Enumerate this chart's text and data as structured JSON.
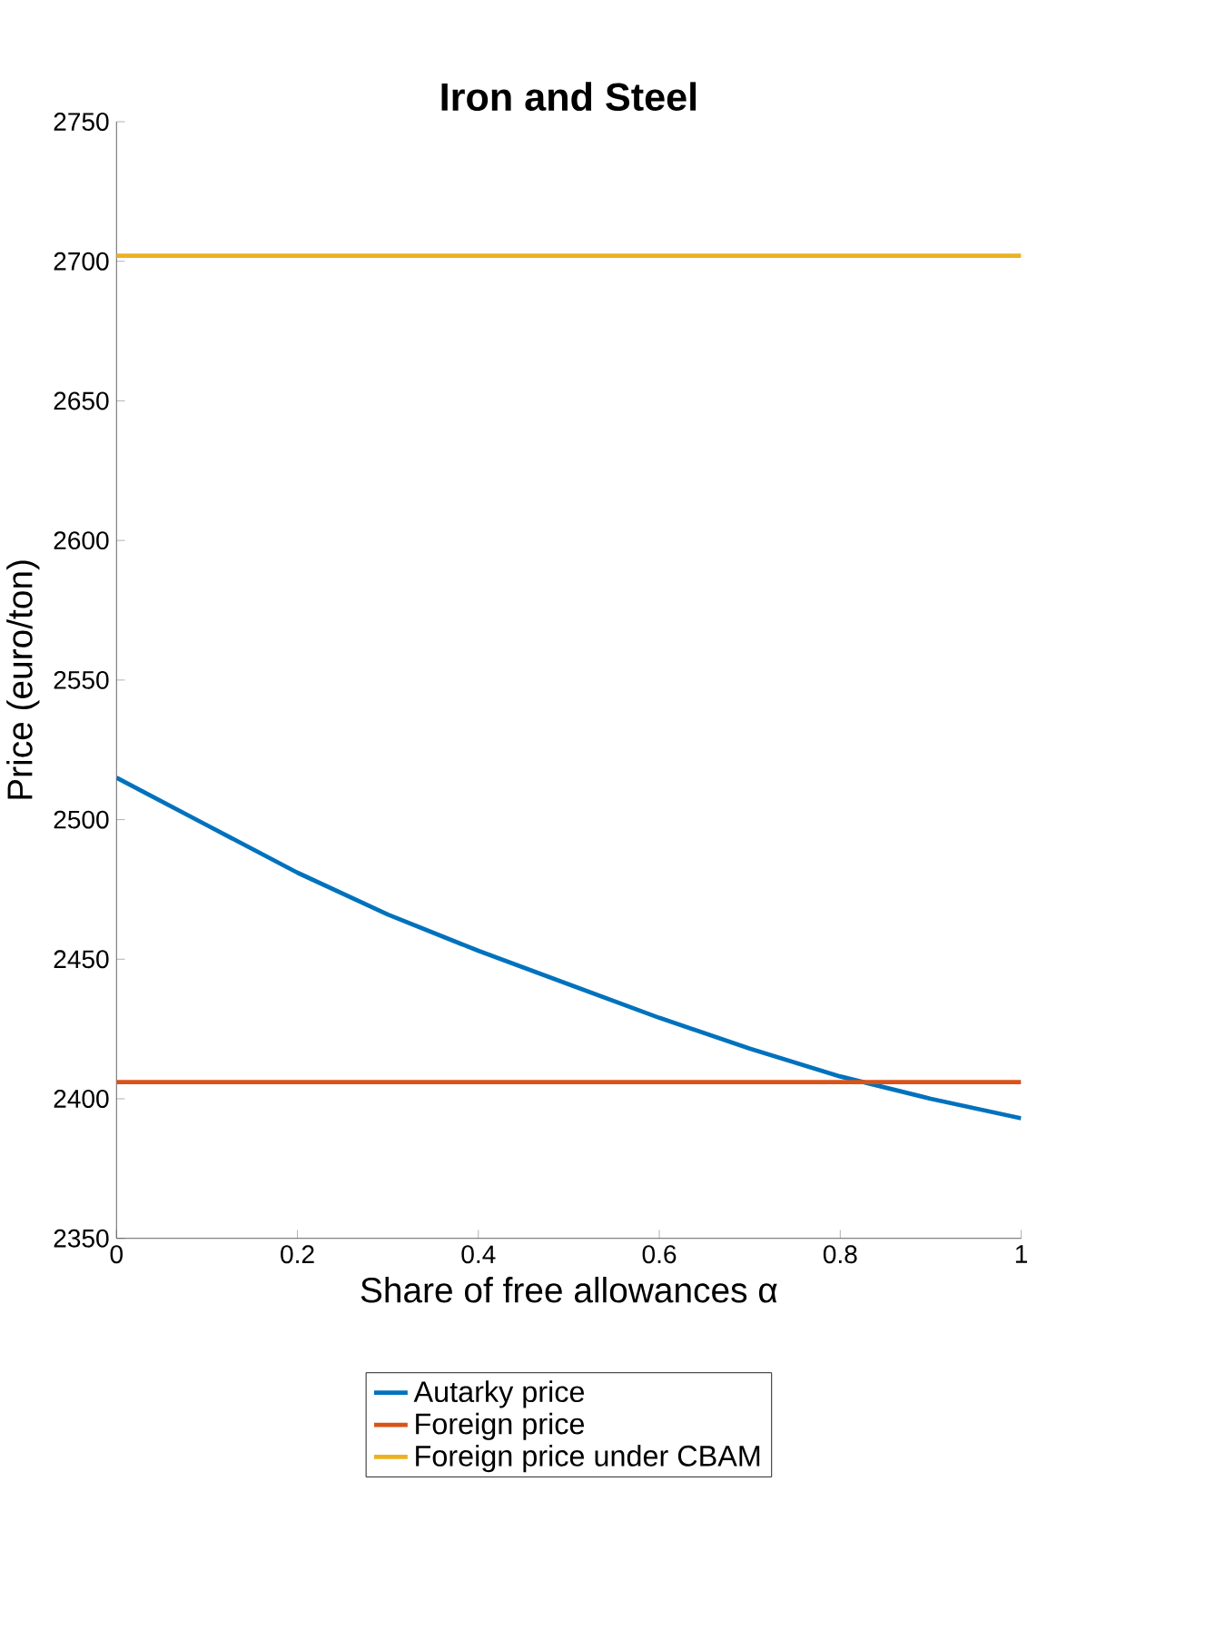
{
  "chart_data": {
    "type": "line",
    "title": "Iron and Steel",
    "xlabel": "Share of free allowances α",
    "ylabel": "Price (euro/ton)",
    "xlim": [
      0,
      1
    ],
    "ylim": [
      2350,
      2750
    ],
    "xticks": [
      0,
      0.2,
      0.4,
      0.6,
      0.8,
      1
    ],
    "yticks": [
      2350,
      2400,
      2450,
      2500,
      2550,
      2600,
      2650,
      2700,
      2750
    ],
    "legend": "bottom",
    "marker": "none",
    "line_style": "solid",
    "series": [
      {
        "name": "Autarky price",
        "color": "#0072bd",
        "x": [
          0,
          0.1,
          0.2,
          0.3,
          0.4,
          0.5,
          0.6,
          0.7,
          0.8,
          0.9,
          1
        ],
        "values": [
          2515,
          2498,
          2481,
          2466,
          2453,
          2441,
          2429,
          2418,
          2408,
          2400,
          2393
        ]
      },
      {
        "name": "Foreign price",
        "color": "#d95319",
        "x": [
          0,
          1
        ],
        "values": [
          2406,
          2406
        ]
      },
      {
        "name": "Foreign price under CBAM",
        "color": "#edb120",
        "x": [
          0,
          1
        ],
        "values": [
          2702,
          2702
        ]
      }
    ]
  }
}
